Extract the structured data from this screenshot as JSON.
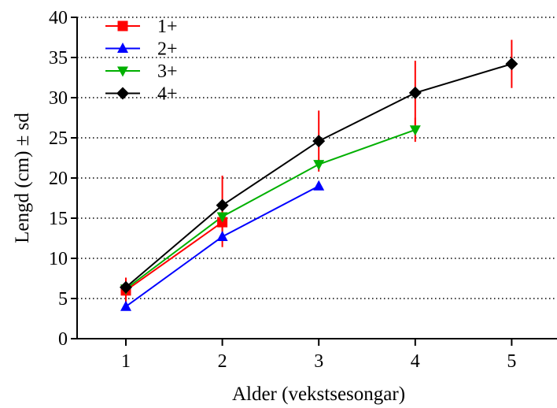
{
  "chart_data": {
    "type": "line",
    "xlabel": "Alder (vekstsesongar)",
    "ylabel": "Lengd (cm) ± sd",
    "xlim": [
      0.5,
      5.5
    ],
    "ylim": [
      0,
      40
    ],
    "xticks": [
      "1",
      "2",
      "3",
      "4",
      "5"
    ],
    "yticks": [
      "0",
      "5",
      "10",
      "15",
      "20",
      "25",
      "30",
      "35",
      "40"
    ],
    "grid": "horizontal dotted",
    "legend_position": "top-left",
    "errorbar_color": "#ff0000",
    "series": [
      {
        "name": "1+",
        "marker": "square",
        "color": "#ff0000",
        "x": [
          1,
          2
        ],
        "y": [
          6.0,
          14.5
        ],
        "sd": [
          1.6,
          0
        ]
      },
      {
        "name": "2+",
        "marker": "triangle-up",
        "color": "#0000ff",
        "x": [
          1,
          2,
          3
        ],
        "y": [
          4.0,
          12.7,
          19.0
        ],
        "sd": [
          0.3,
          1.3,
          0.3
        ]
      },
      {
        "name": "3+",
        "marker": "triangle-down",
        "color": "#00b000",
        "x": [
          1,
          2,
          3,
          4
        ],
        "y": [
          6.2,
          15.2,
          21.7,
          26.0
        ],
        "sd": [
          0.5,
          0.7,
          0.6,
          1.5
        ]
      },
      {
        "name": "4+",
        "marker": "diamond",
        "color": "#000000",
        "x": [
          1,
          2,
          3,
          4,
          5
        ],
        "y": [
          6.4,
          16.6,
          24.6,
          30.6,
          34.2
        ],
        "sd": [
          0.8,
          3.7,
          3.8,
          4.0,
          3.0
        ]
      }
    ]
  }
}
